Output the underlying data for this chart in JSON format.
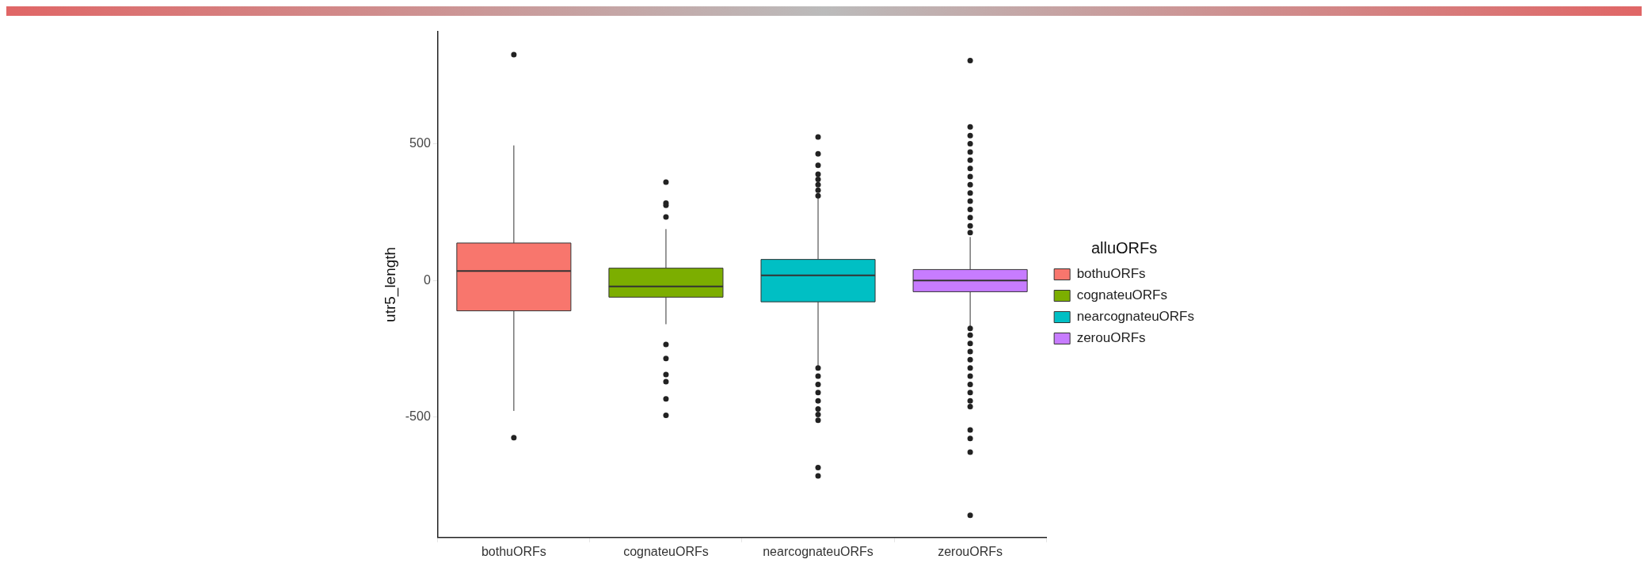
{
  "chart_data": {
    "type": "box",
    "ylabel": "utr5_length",
    "legend_title": "alluORFs",
    "categories": [
      "bothuORFs",
      "cognateuORFs",
      "nearcognateuORFs",
      "zerouORFs"
    ],
    "series": [
      {
        "name": "bothuORFs",
        "color": "#f8766d",
        "boxes": [
          {
            "low": -477,
            "q1": -111,
            "median": 35,
            "q3": 137,
            "high": 494,
            "outliers": [
              826,
              -575
            ]
          },
          null,
          null,
          null
        ]
      },
      {
        "name": "cognateuORFs",
        "color": "#7cae00",
        "boxes": [
          null,
          {
            "low": -160,
            "q1": -61,
            "median": -22,
            "q3": 45,
            "high": 188,
            "outliers": [
              360,
              283,
              275,
              232,
              -234,
              -285,
              -344,
              -370,
              -433,
              -493
            ]
          },
          null,
          null
        ]
      },
      {
        "name": "nearcognateuORFs",
        "color": "#00bfc4",
        "boxes": [
          null,
          null,
          {
            "low": -312,
            "q1": -78,
            "median": 19,
            "q3": 77,
            "high": 302,
            "outliers": [
              525,
              463,
              421,
              389,
              370,
              350,
              330,
              310,
              -320,
              -350,
              -380,
              -410,
              -440,
              -470,
              -490,
              -511,
              -684,
              -715
            ]
          },
          null
        ]
      },
      {
        "name": "zerouORFs",
        "color": "#c77cff",
        "boxes": [
          null,
          null,
          null,
          {
            "low": -169,
            "q1": -41,
            "median": 0,
            "q3": 40,
            "high": 159,
            "outliers": [
              804,
              562,
              530,
              500,
              470,
              440,
              410,
              380,
              350,
              320,
              290,
              260,
              230,
              200,
              175,
              -175,
              -200,
              -230,
              -260,
              -290,
              -320,
              -350,
              -380,
              -410,
              -440,
              -461,
              -547,
              -578,
              -628,
              -859
            ]
          }
        ]
      }
    ],
    "ylim": [
      -940,
      910
    ],
    "yticks": [
      -500,
      0,
      500
    ],
    "legend": "right"
  }
}
